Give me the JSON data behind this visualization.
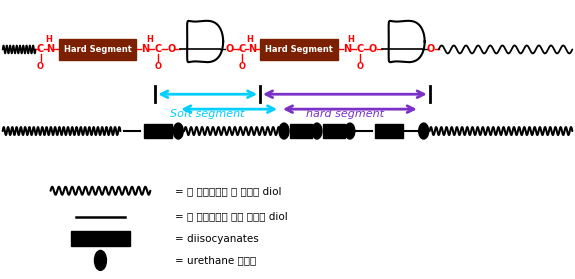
{
  "bg_color": "#ffffff",
  "hard_segment_color": "#7B2000",
  "hard_segment_text": "Hard Segment",
  "hard_segment_text_color": "#ffffff",
  "red_color": "#FF0000",
  "black_color": "#000000",
  "cyan_color": "#00CFFF",
  "purple_color": "#7B30C8",
  "legend_items": [
    {
      "text": "= 고 분자량이며 긴 사슐의 diol"
    },
    {
      "text": "= 저 분자량이며 짧은 사슐의 diol"
    },
    {
      "text": "= diisocyanates"
    },
    {
      "text": "= urethane 작용기"
    }
  ]
}
